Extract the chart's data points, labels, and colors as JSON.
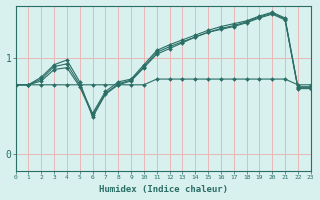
{
  "xlabel": "Humidex (Indice chaleur)",
  "background_color": "#d8f0ee",
  "grid_color": "#e8b8b8",
  "line_color": "#2a6e65",
  "x_ticks": [
    0,
    1,
    2,
    3,
    4,
    5,
    6,
    7,
    8,
    9,
    10,
    11,
    12,
    13,
    14,
    15,
    16,
    17,
    18,
    19,
    20,
    21,
    22,
    23
  ],
  "y_ticks": [
    0,
    1
  ],
  "xlim": [
    0,
    23
  ],
  "ylim": [
    -0.18,
    1.55
  ],
  "line1_y": [
    0.72,
    0.72,
    0.72,
    0.72,
    0.72,
    0.72,
    0.72,
    0.72,
    0.72,
    0.72,
    0.72,
    0.78,
    0.78,
    0.78,
    0.78,
    0.78,
    0.78,
    0.78,
    0.78,
    0.78,
    0.78,
    0.78,
    0.72,
    0.72
  ],
  "line2_y": [
    0.72,
    0.72,
    0.8,
    0.93,
    0.98,
    0.75,
    0.38,
    0.62,
    0.72,
    0.76,
    0.9,
    1.04,
    1.1,
    1.16,
    1.22,
    1.27,
    1.31,
    1.34,
    1.38,
    1.43,
    1.47,
    1.41,
    0.68,
    0.68
  ],
  "line3_y": [
    0.72,
    0.72,
    0.78,
    0.91,
    0.94,
    0.72,
    0.42,
    0.65,
    0.75,
    0.78,
    0.93,
    1.08,
    1.14,
    1.19,
    1.24,
    1.29,
    1.33,
    1.36,
    1.39,
    1.44,
    1.48,
    1.42,
    0.7,
    0.7
  ],
  "line4_y": [
    0.72,
    0.72,
    0.76,
    0.88,
    0.9,
    0.7,
    0.4,
    0.63,
    0.73,
    0.77,
    0.91,
    1.06,
    1.12,
    1.17,
    1.22,
    1.27,
    1.3,
    1.33,
    1.37,
    1.42,
    1.46,
    1.4,
    0.69,
    0.69
  ]
}
